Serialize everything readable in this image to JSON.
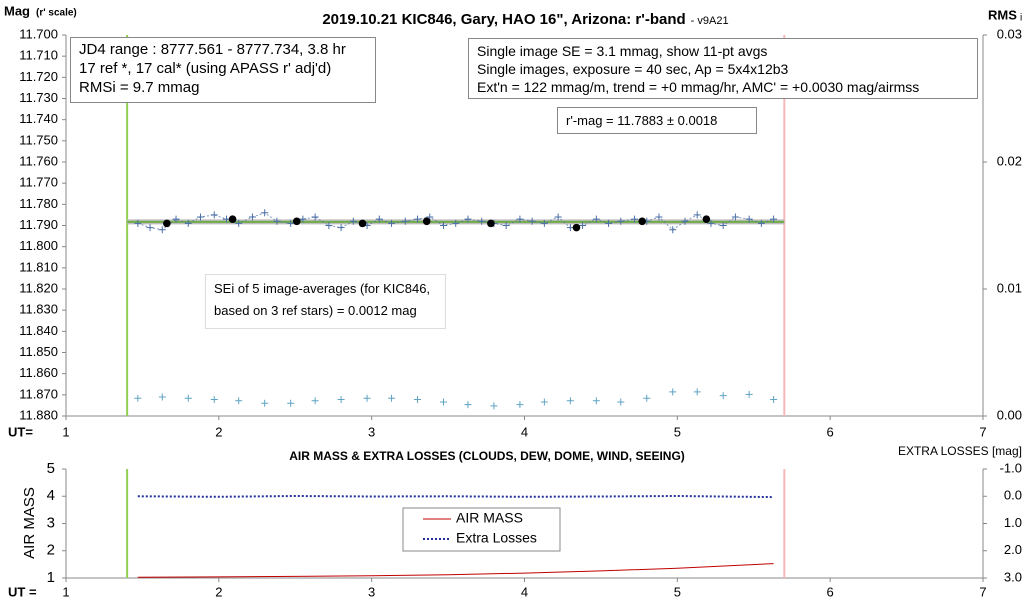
{
  "chart_data": [
    {
      "type": "line",
      "title": "2019.10.21 KIC846, Gary, HAO 16\", Arizona: r'-band",
      "subtitle": "- v9A21",
      "y_label": "Mag",
      "y_label_note": "(r' scale)",
      "y2_label": "RMS",
      "y2_label_sub": "i",
      "x_label": "UT=",
      "xlim": [
        1,
        7
      ],
      "xticks": [
        1,
        2,
        3,
        4,
        5,
        6,
        7
      ],
      "ylim": [
        11.88,
        11.7
      ],
      "yticks": [
        {
          "value": 11.7,
          "label": "11.700"
        },
        {
          "value": 11.71,
          "label": "11.710"
        },
        {
          "value": 11.72,
          "label": "11.720"
        },
        {
          "value": 11.73,
          "label": "11.730"
        },
        {
          "value": 11.74,
          "label": "11.740"
        },
        {
          "value": 11.75,
          "label": "11.750"
        },
        {
          "value": 11.76,
          "label": "11.760"
        },
        {
          "value": 11.77,
          "label": "11.770"
        },
        {
          "value": 11.78,
          "label": "11.780"
        },
        {
          "value": 11.79,
          "label": "11.790"
        },
        {
          "value": 11.8,
          "label": "11.800"
        },
        {
          "value": 11.81,
          "label": "11.810"
        },
        {
          "value": 11.82,
          "label": "11.820"
        },
        {
          "value": 11.83,
          "label": "11.830"
        },
        {
          "value": 11.84,
          "label": "11.840"
        },
        {
          "value": 11.85,
          "label": "11.850"
        },
        {
          "value": 11.86,
          "label": "11.860"
        },
        {
          "value": 11.87,
          "label": "11.870"
        },
        {
          "value": 11.88,
          "label": "11.880"
        }
      ],
      "y2lim": [
        0,
        0.03
      ],
      "y2ticks": [
        {
          "value": 0,
          "label": "0.00"
        },
        0.01,
        0.02,
        0.03
      ],
      "vlines": [
        {
          "x": 1.4,
          "color": "#92d050"
        },
        {
          "x": 5.7,
          "color": "#f4b8b8"
        }
      ],
      "series": [
        {
          "x": [
            1.4,
            5.7
          ],
          "values": [
            11.7883,
            11.7883
          ],
          "color": "#70ad47",
          "marker": "none",
          "line": "band"
        },
        {
          "x": [
            1.47,
            1.55,
            1.63,
            1.72,
            1.8,
            1.88,
            1.97,
            2.05,
            2.13,
            2.22,
            2.3,
            2.38,
            2.47,
            2.55,
            2.63,
            2.72,
            2.8,
            2.88,
            2.97,
            3.05,
            3.13,
            3.22,
            3.3,
            3.38,
            3.47,
            3.55,
            3.63,
            3.72,
            3.8,
            3.88,
            3.97,
            4.05,
            4.13,
            4.22,
            4.3,
            4.38,
            4.47,
            4.55,
            4.63,
            4.72,
            4.8,
            4.88,
            4.97,
            5.05,
            5.13,
            5.22,
            5.3,
            5.38,
            5.47,
            5.55,
            5.63
          ],
          "values": [
            11.789,
            11.791,
            11.792,
            11.787,
            11.789,
            11.786,
            11.785,
            11.787,
            11.789,
            11.786,
            11.784,
            11.788,
            11.789,
            11.787,
            11.786,
            11.79,
            11.791,
            11.788,
            11.79,
            11.787,
            11.789,
            11.788,
            11.787,
            11.786,
            11.79,
            11.789,
            11.787,
            11.788,
            11.789,
            11.79,
            11.787,
            11.788,
            11.789,
            11.786,
            11.791,
            11.79,
            11.787,
            11.789,
            11.788,
            11.787,
            11.788,
            11.786,
            11.792,
            11.788,
            11.785,
            11.789,
            11.79,
            11.786,
            11.787,
            11.789,
            11.787
          ],
          "color": "#4a6fa5",
          "marker": "plus",
          "line": "dotted"
        },
        {
          "x": [
            1.66,
            2.09,
            2.51,
            2.94,
            3.36,
            3.78,
            4.34,
            4.77,
            5.19
          ],
          "values": [
            11.789,
            11.787,
            11.788,
            11.789,
            11.788,
            11.789,
            11.791,
            11.788,
            11.787
          ],
          "color": "#000000",
          "marker": "dot",
          "line": "none"
        },
        {
          "x": [
            1.47,
            1.63,
            1.8,
            1.97,
            2.13,
            2.3,
            2.47,
            2.63,
            2.8,
            2.97,
            3.13,
            3.3,
            3.47,
            3.63,
            3.8,
            3.97,
            4.13,
            4.3,
            4.47,
            4.63,
            4.8,
            4.97,
            5.13,
            5.3,
            5.47,
            5.63
          ],
          "values": [
            0.0014,
            0.0015,
            0.0014,
            0.0013,
            0.0012,
            0.001,
            0.001,
            0.0012,
            0.0013,
            0.0014,
            0.0014,
            0.0013,
            0.0011,
            0.0009,
            0.0008,
            0.0009,
            0.0011,
            0.0012,
            0.0012,
            0.0011,
            0.0014,
            0.0019,
            0.0019,
            0.0016,
            0.0017,
            0.0013
          ],
          "axis": "y2",
          "color": "#5fa3c4",
          "marker": "plus",
          "line": "none"
        }
      ],
      "annotations": [
        {
          "lines": [
            "JD4 range : 8777.561 - 8777.734,  3.8  hr",
            "17 ref *, 17 cal* (using APASS r' adj'd)",
            "RMSi = 9.7 mmag"
          ]
        },
        {
          "lines": [
            "Single image SE = 3.1 mmag, show  11-pt avgs",
            "Single images, exposure = 40 sec, Ap = 5x4x12b3",
            "Ext'n = 122 mmag/m, trend =  +0 mmag/hr, AMC' = +0.0030 mag/airmss"
          ]
        },
        {
          "lines": [
            "r'-mag = 11.7883 ± 0.0018"
          ]
        },
        {
          "lines": [
            "SEi of 5 image-averages (for KIC846,",
            "based on 3 ref stars) = 0.0012 mag"
          ]
        }
      ]
    },
    {
      "type": "line",
      "title": "AIR MASS & EXTRA LOSSES (CLOUDS, DEW, DOME, WIND, SEEING)",
      "y_label": "AIR MASS",
      "y2_label": "EXTRA LOSSES [mag]",
      "x_label": "UT =",
      "xlim": [
        1,
        7
      ],
      "xticks": [
        1,
        2,
        3,
        4,
        5,
        6,
        7
      ],
      "ylim": [
        1,
        5
      ],
      "yticks": [
        1,
        2,
        3,
        4,
        5
      ],
      "y2lim": [
        3,
        -1
      ],
      "y2ticks": [
        {
          "value": -1,
          "label": "-1.0"
        },
        {
          "value": 0,
          "label": "0.0"
        },
        {
          "value": 1,
          "label": "1.0"
        },
        {
          "value": 2,
          "label": "2.0"
        },
        {
          "value": 3,
          "label": "3.0"
        }
      ],
      "vlines": [
        {
          "x": 1.4,
          "color": "#92d050"
        },
        {
          "x": 5.7,
          "color": "#f4b8b8"
        }
      ],
      "legend": "center",
      "series": [
        {
          "name": "AIR MASS",
          "x": [
            1.47,
            2,
            2.5,
            3,
            3.5,
            4,
            4.5,
            5,
            5.63
          ],
          "values": [
            1.03,
            1.04,
            1.06,
            1.08,
            1.12,
            1.18,
            1.26,
            1.36,
            1.53
          ],
          "color": "#c00000",
          "marker": "none",
          "line": "solid"
        },
        {
          "name": "Extra Losses",
          "axis": "y2",
          "x": [
            1.47,
            2,
            2.5,
            3,
            3.5,
            4,
            4.5,
            5,
            5.63
          ],
          "values": [
            0,
            0.02,
            -0.01,
            0.01,
            0,
            0.02,
            0.01,
            -0.01,
            0.03
          ],
          "color": "#2030a0",
          "marker": "none",
          "line": "dotted"
        }
      ]
    }
  ]
}
